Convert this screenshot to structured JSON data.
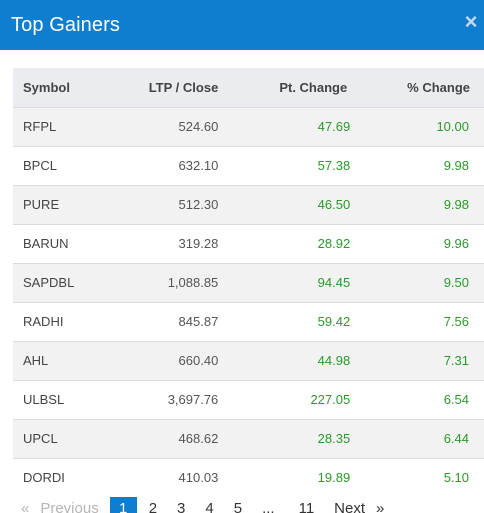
{
  "modal": {
    "title": "Top Gainers",
    "close_icon": "×"
  },
  "table": {
    "columns": [
      "Symbol",
      "LTP / Close",
      "Pt. Change",
      "% Change"
    ],
    "rows": [
      {
        "symbol": "RFPL",
        "ltp": "524.60",
        "pt": "47.69",
        "pct": "10.00"
      },
      {
        "symbol": "BPCL",
        "ltp": "632.10",
        "pt": "57.38",
        "pct": "9.98"
      },
      {
        "symbol": "PURE",
        "ltp": "512.30",
        "pt": "46.50",
        "pct": "9.98"
      },
      {
        "symbol": "BARUN",
        "ltp": "319.28",
        "pt": "28.92",
        "pct": "9.96"
      },
      {
        "symbol": "SAPDBL",
        "ltp": "1,088.85",
        "pt": "94.45",
        "pct": "9.50"
      },
      {
        "symbol": "RADHI",
        "ltp": "845.87",
        "pt": "59.42",
        "pct": "7.56"
      },
      {
        "symbol": "AHL",
        "ltp": "660.40",
        "pt": "44.98",
        "pct": "7.31"
      },
      {
        "symbol": "ULBSL",
        "ltp": "3,697.76",
        "pt": "227.05",
        "pct": "6.54"
      },
      {
        "symbol": "UPCL",
        "ltp": "468.62",
        "pt": "28.35",
        "pct": "6.44"
      },
      {
        "symbol": "DORDI",
        "ltp": "410.03",
        "pt": "19.89",
        "pct": "5.10"
      }
    ]
  },
  "pagination": {
    "prev_icon": "«",
    "prev_label": "Previous",
    "pages": [
      "1",
      "2",
      "3",
      "4",
      "5"
    ],
    "ellipsis": "...",
    "last_page": "11",
    "next_label": "Next",
    "next_icon": "»"
  },
  "colors": {
    "header_bg": "#0f7ecf",
    "positive": "#2b9a2b"
  }
}
